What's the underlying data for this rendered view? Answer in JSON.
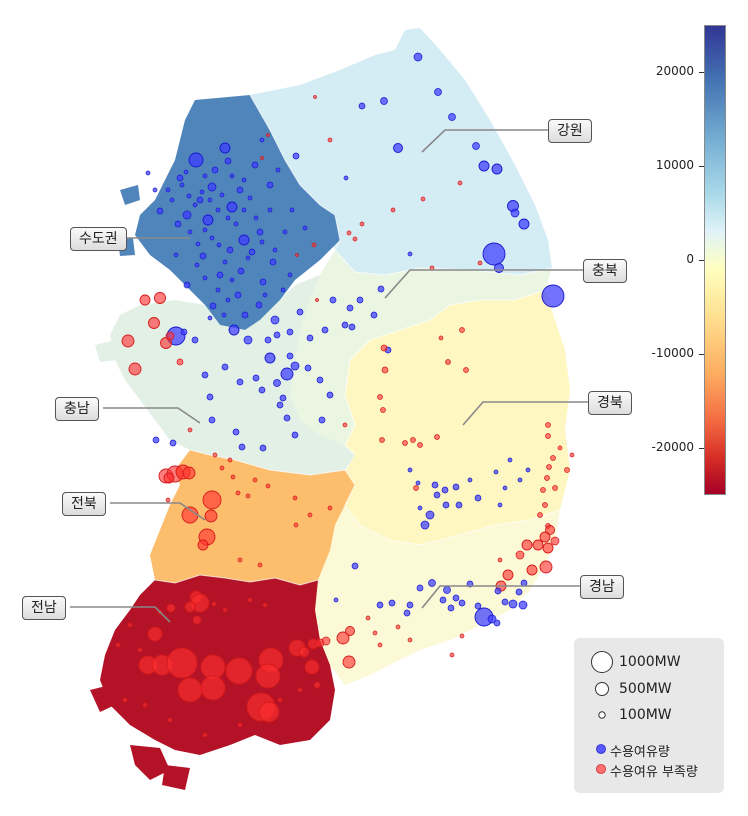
{
  "regions": [
    {
      "name": "수도권",
      "value": 22000
    },
    {
      "name": "강원",
      "value": 7500
    },
    {
      "name": "충북",
      "value": 2500
    },
    {
      "name": "충남",
      "value": 4500
    },
    {
      "name": "경북",
      "value": -7500
    },
    {
      "name": "경남",
      "value": -3500
    },
    {
      "name": "전북",
      "value": -15500
    },
    {
      "name": "전남",
      "value": -26000
    }
  ],
  "colorbar": {
    "ticks": [
      20000,
      10000,
      0,
      -10000,
      -20000
    ],
    "range": [
      -25000,
      25000
    ]
  },
  "legend": {
    "sizes": [
      {
        "label": "1000MW",
        "mw": 1000
      },
      {
        "label": "500MW",
        "mw": 500
      },
      {
        "label": "100MW",
        "mw": 100
      }
    ],
    "colors": [
      {
        "label": "수용여유량",
        "color": "#3b3bff"
      },
      {
        "label": "수용여유 부족량",
        "color": "#ff3030"
      }
    ]
  },
  "colors": {
    "surplus": "#3b3bff",
    "shortage": "#ff3030"
  }
}
